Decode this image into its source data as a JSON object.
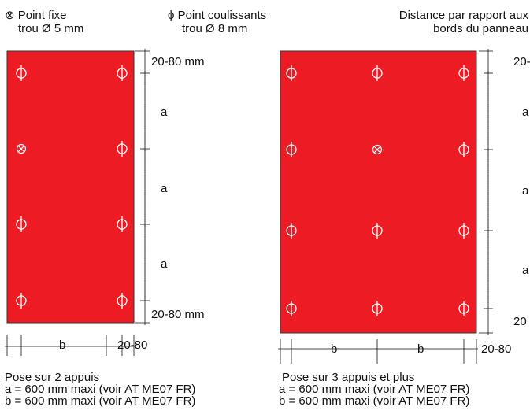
{
  "legend": {
    "fixed_symbol": "⊗",
    "fixed_label": "Point fixe",
    "fixed_hole": "trou Ø 5 mm",
    "sliding_symbol": "ϕ",
    "sliding_label": "Point coulissants",
    "sliding_hole": "trou Ø 8 mm",
    "distance_line1": "Distance par rapport aux",
    "distance_line2": "bords du panneau"
  },
  "left_panel": {
    "edge_top": "20-80 mm",
    "spacing_1": "a",
    "spacing_2": "a",
    "spacing_3": "a",
    "edge_bottom": "20-80 mm",
    "width_b": "b",
    "width_edge": "20-80",
    "caption_title": "Pose sur 2 appuis",
    "caption_a": "a = 600 mm maxi (voir AT ME07 FR)",
    "caption_b": "b = 600 mm maxi (voir AT ME07 FR)"
  },
  "right_panel": {
    "edge_top": "20-",
    "spacing_1": "a",
    "spacing_2": "a",
    "spacing_3": "a",
    "edge_bottom": "20",
    "width_b1": "b",
    "width_b2": "b",
    "width_edge": "20-80",
    "caption_title": "Pose sur 3 appuis et plus",
    "caption_a": "a = 600 mm maxi (voir AT ME07 FR)",
    "caption_b": "b = 600 mm maxi (voir AT ME07 FR)"
  },
  "colors": {
    "panel_fill": "#ed1c24",
    "line": "#111111"
  }
}
